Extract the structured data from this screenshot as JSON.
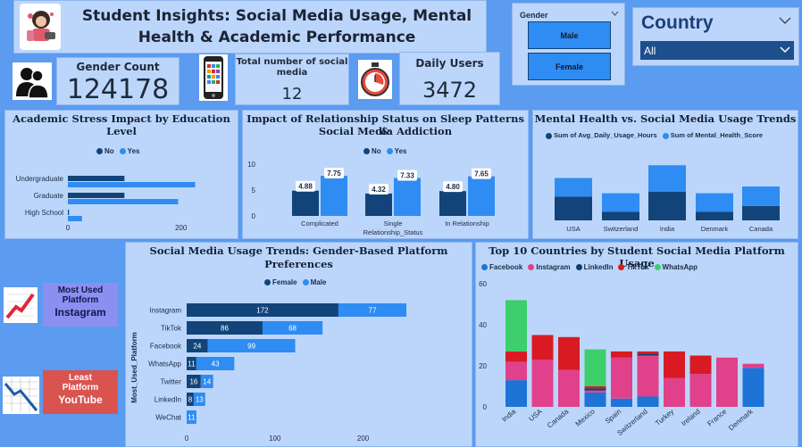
{
  "header": {
    "title_line1": "Student Insights: Social Media Usage, Mental",
    "title_line2": "Health & Academic Performance",
    "logo": "student-illustration-icon"
  },
  "gender_filter": {
    "label": "Gender",
    "options": [
      "Male",
      "Female"
    ]
  },
  "country_filter": {
    "label": "Country",
    "selected": "All"
  },
  "kpis": {
    "gender_count": {
      "label": "Gender Count",
      "value": "124178"
    },
    "social_media": {
      "label_line1": "Total number of social",
      "label_line2": "media",
      "value": "12"
    },
    "daily_users": {
      "label": "Daily Users",
      "value": "3472"
    }
  },
  "colors": {
    "dark": "#12447a",
    "light": "#2f8cf2",
    "facebook": "#1e73d6",
    "instagram": "#e0418a",
    "linkedin": "#123d6b",
    "tiktok": "#d91a22",
    "whatsapp": "#3ccf6b"
  },
  "most_used": {
    "line1": "Most Used",
    "line2": "Platform",
    "value": "Instagram"
  },
  "least_used": {
    "line1": "Least",
    "line2": "Platform",
    "value": "YouTube"
  },
  "chart_data": [
    {
      "id": "stress",
      "type": "bar",
      "orientation": "horizontal",
      "title_line1": "Academic Stress Impact by Education",
      "title_line2": "Level",
      "legend": [
        "No",
        "Yes"
      ],
      "categories": [
        "Undergraduate",
        "Graduate",
        "High School"
      ],
      "series": [
        {
          "name": "No",
          "values": [
            100,
            100,
            2
          ]
        },
        {
          "name": "Yes",
          "values": [
            225,
            195,
            25
          ]
        }
      ],
      "xticks": [
        "0",
        "200"
      ],
      "xlim": [
        0,
        300
      ]
    },
    {
      "id": "relationship",
      "type": "bar",
      "title_line1": "Impact of Relationship Status on Sleep Patterns &",
      "title_line2": "Social Media Addiction",
      "legend": [
        "No",
        "Yes"
      ],
      "categories": [
        "Complicated",
        "Single",
        "In Relationship"
      ],
      "xlabel": "Relationship_Status",
      "series": [
        {
          "name": "No",
          "values": [
            4.88,
            4.32,
            4.8
          ],
          "labels": [
            "4.88",
            "4.32",
            "4.80"
          ]
        },
        {
          "name": "Yes",
          "values": [
            7.75,
            7.33,
            7.65
          ],
          "labels": [
            "7.75",
            "7.33",
            "7.65"
          ]
        }
      ],
      "yticks": [
        "10",
        "5",
        "0"
      ],
      "ylim": [
        0,
        10
      ]
    },
    {
      "id": "mental",
      "type": "bar",
      "stacked": true,
      "title": "Mental Health vs. Social Media Usage Trends",
      "legend": [
        "Sum of Avg_Daily_Usage_Hours",
        "Sum of Mental_Health_Score"
      ],
      "categories": [
        "USA",
        "Switzerland",
        "India",
        "Denmark",
        "Canada"
      ],
      "series": [
        {
          "name": "Sum of Avg_Daily_Usage_Hours",
          "values": [
            28,
            10,
            34,
            10,
            17
          ]
        },
        {
          "name": "Sum of Mental_Health_Score",
          "values": [
            22,
            22,
            31,
            22,
            23
          ]
        }
      ]
    },
    {
      "id": "gender_platform",
      "type": "bar",
      "orientation": "horizontal",
      "stacked": true,
      "title_line1": "Social Media Usage Trends: Gender-Based Platform",
      "title_line2": "Preferences",
      "legend": [
        "Female",
        "Male"
      ],
      "ylabel": "Most_Used_Platform",
      "categories": [
        "Instagram",
        "TikTok",
        "Facebook",
        "WhatsApp",
        "Twitter",
        "LinkedIn",
        "WeChat"
      ],
      "series": [
        {
          "name": "Female",
          "values": [
            172,
            86,
            24,
            11,
            16,
            8,
            0
          ]
        },
        {
          "name": "Male",
          "values": [
            77,
            68,
            99,
            43,
            14,
            13,
            11
          ]
        }
      ],
      "xticks": [
        "0",
        "100",
        "200"
      ],
      "xlim": [
        0,
        250
      ]
    },
    {
      "id": "countries",
      "type": "bar",
      "stacked": true,
      "title": "Top 10 Countries by Student Social Media Platform Usage",
      "legend": [
        "Facebook",
        "Instagram",
        "LinkedIn",
        "TikTok",
        "WhatsApp"
      ],
      "categories": [
        "India",
        "USA",
        "Canada",
        "Mexico",
        "Spain",
        "Switzerland",
        "Turkey",
        "Ireland",
        "France",
        "Denmark"
      ],
      "series": [
        {
          "name": "Facebook",
          "values": [
            13,
            0,
            0,
            7,
            4,
            5,
            0,
            0,
            0,
            19
          ]
        },
        {
          "name": "Instagram",
          "values": [
            9,
            23,
            18,
            1,
            20,
            20,
            14,
            16,
            24,
            2
          ]
        },
        {
          "name": "LinkedIn",
          "values": [
            0,
            0,
            0,
            1,
            0,
            1,
            0,
            0,
            0,
            0
          ]
        },
        {
          "name": "TikTok",
          "values": [
            5,
            12,
            16,
            1,
            3,
            1,
            13,
            9,
            0,
            0
          ]
        },
        {
          "name": "WhatsApp",
          "values": [
            25,
            0,
            0,
            18,
            0,
            0,
            0,
            0,
            0,
            0
          ]
        }
      ],
      "yticks": [
        "60",
        "40",
        "20",
        "0"
      ],
      "ylim": [
        0,
        60
      ]
    }
  ]
}
